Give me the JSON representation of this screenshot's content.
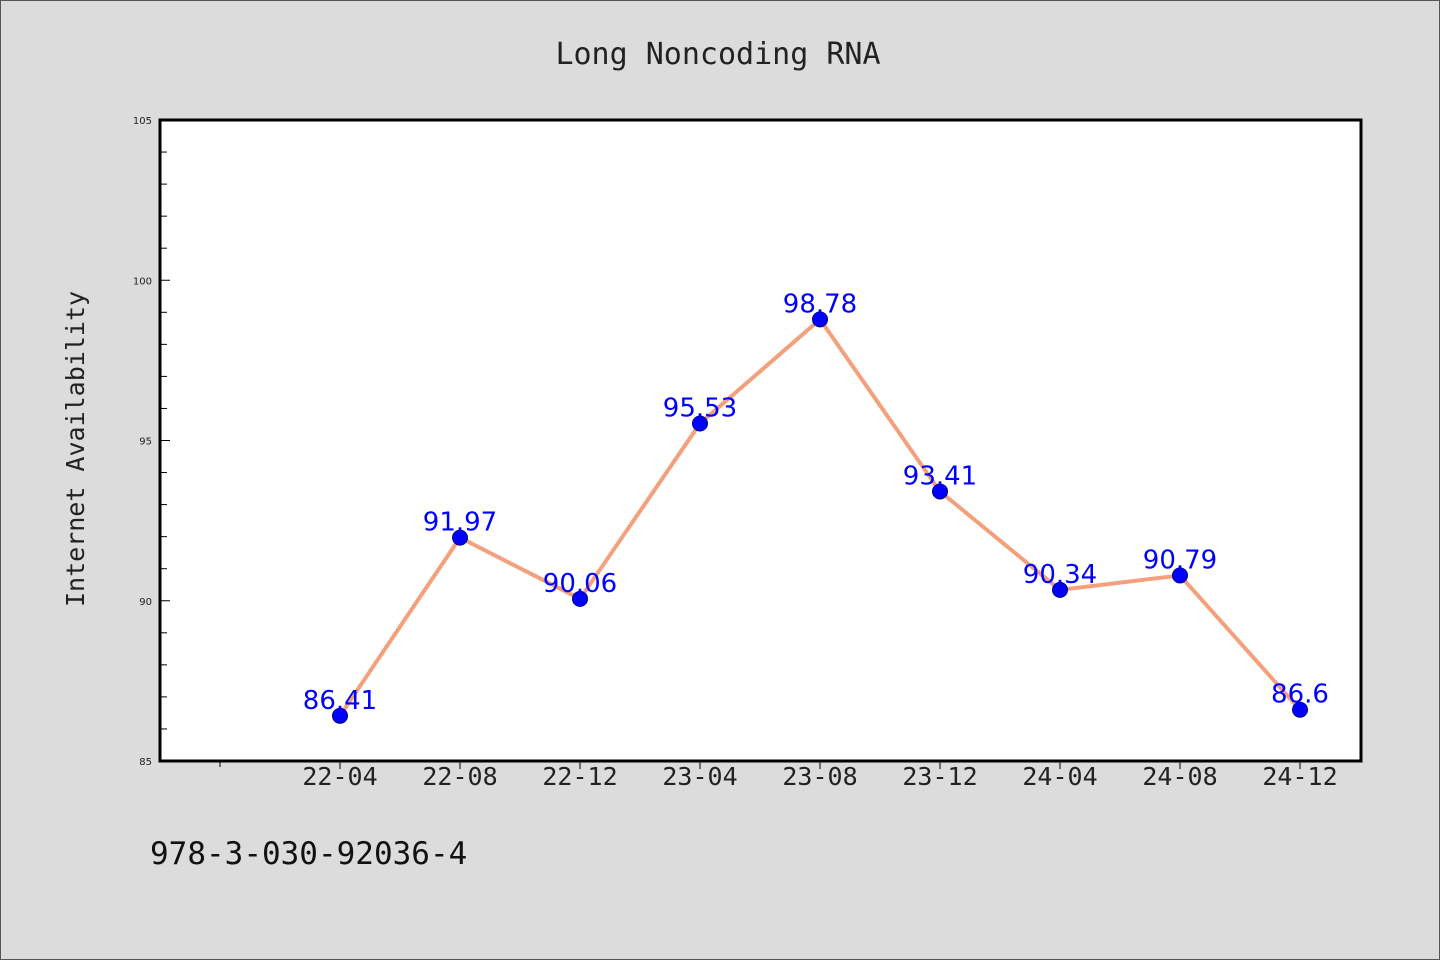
{
  "chart_data": {
    "type": "line",
    "title": "Long Noncoding RNA",
    "xlabel": "",
    "ylabel": "Internet Availability",
    "categories": [
      "22-04",
      "22-08",
      "22-12",
      "23-04",
      "23-08",
      "23-12",
      "24-04",
      "24-08",
      "24-12"
    ],
    "values": [
      86.41,
      91.97,
      90.06,
      95.53,
      98.78,
      93.41,
      90.34,
      90.79,
      86.6
    ],
    "data_labels": [
      "86.41",
      "91.97",
      "90.06",
      "95.53",
      "98.78",
      "93.41",
      "90.34",
      "90.79",
      "86.6"
    ],
    "ylim": [
      85,
      105
    ],
    "y_ticks": [
      "85",
      "90",
      "95",
      "100",
      "105"
    ],
    "grid": false,
    "line_color": "#f4a07c",
    "marker_color": "#0000ff",
    "label_color": "#0000ff"
  },
  "footer": {
    "text": "978-3-030-92036-4"
  }
}
